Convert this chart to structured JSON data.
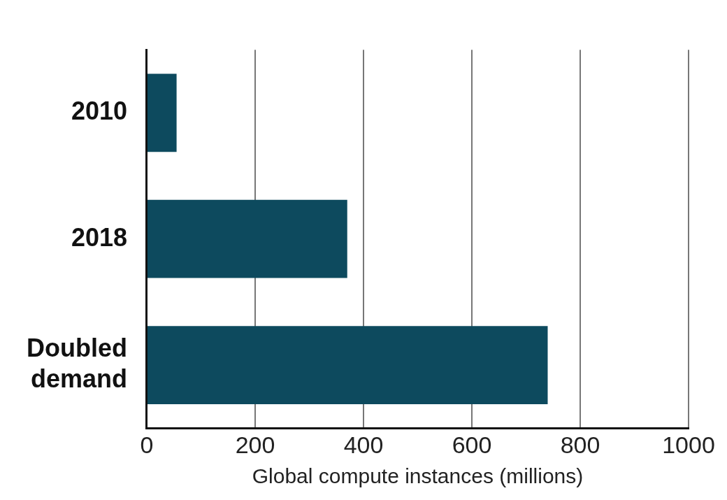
{
  "chart_data": {
    "type": "bar",
    "orientation": "horizontal",
    "categories": [
      "2010",
      "2018",
      "Doubled demand"
    ],
    "values": [
      55,
      370,
      740
    ],
    "color": "#0d4a5e",
    "xlim": [
      0,
      1000
    ],
    "xticks": [
      0,
      200,
      400,
      600,
      800,
      1000
    ],
    "xlabel": "Global compute instances (millions)",
    "grid": "x",
    "legend": false
  }
}
